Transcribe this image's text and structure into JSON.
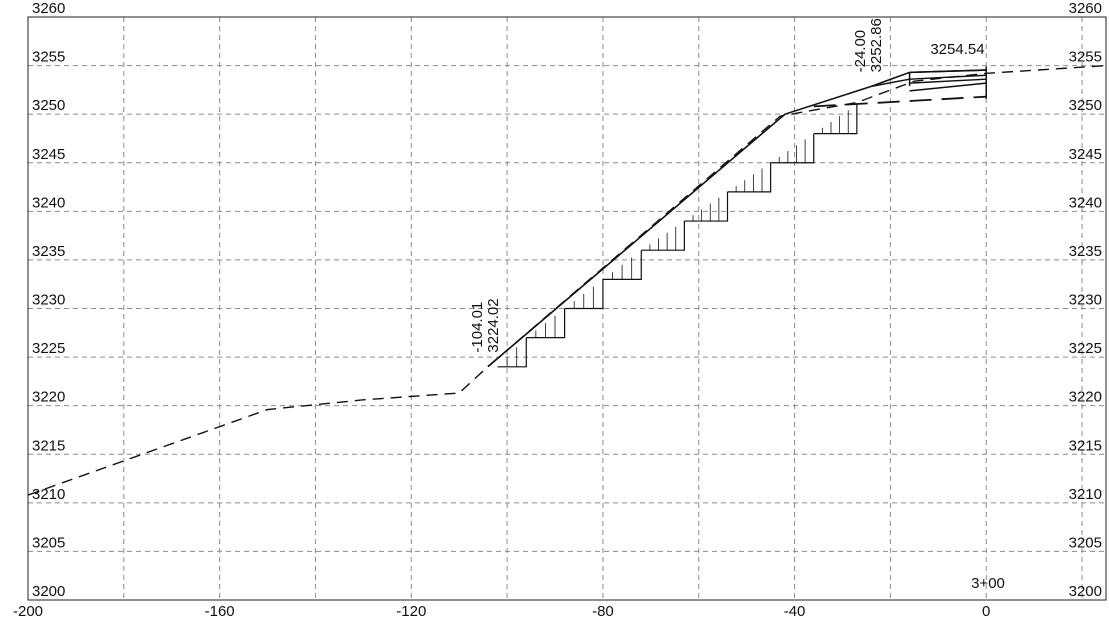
{
  "chart_data": {
    "type": "cross-section",
    "station_label": "3+00",
    "x_axis": {
      "range": [
        -200,
        25
      ],
      "tick_values": [
        -200,
        -160,
        -120,
        -80,
        -40,
        0
      ],
      "tick_labels": [
        "-200",
        "-160",
        "-120",
        "-80",
        "-40",
        "0"
      ],
      "grid_step": 20
    },
    "y_axis": {
      "range": [
        3200,
        3260
      ],
      "tick_values": [
        3200,
        3205,
        3210,
        3215,
        3220,
        3225,
        3230,
        3235,
        3240,
        3245,
        3250,
        3255,
        3260
      ],
      "tick_labels": [
        "3200",
        "3205",
        "3210",
        "3215",
        "3220",
        "3225",
        "3230",
        "3235",
        "3240",
        "3245",
        "3250",
        "3255",
        "3260"
      ]
    },
    "grid": true,
    "existing_ground": [
      {
        "x": -200,
        "y": 3210.8
      },
      {
        "x": -150,
        "y": 3219.6
      },
      {
        "x": -130,
        "y": 3220.6
      },
      {
        "x": -110,
        "y": 3221.3
      },
      {
        "x": -104.01,
        "y": 3224.02
      },
      {
        "x": -43,
        "y": 3249.8
      },
      {
        "x": -27,
        "y": 3251.2
      },
      {
        "x": -15,
        "y": 3253.4
      },
      {
        "x": 0,
        "y": 3254.2
      },
      {
        "x": 25,
        "y": 3255.0
      }
    ],
    "design_surface": [
      {
        "x": -104.01,
        "y": 3224.02
      },
      {
        "x": -42,
        "y": 3250.0
      },
      {
        "x": -24.0,
        "y": 3252.86
      },
      {
        "x": -16,
        "y": 3254.3
      },
      {
        "x": 0,
        "y": 3254.54
      }
    ],
    "road_top": [
      {
        "x": -16,
        "y": 3254.3
      },
      {
        "x": 0,
        "y": 3254.54
      }
    ],
    "road_layers": [
      {
        "from": {
          "x": -16,
          "y": 3253.2
        },
        "to": {
          "x": 0,
          "y": 3253.6
        }
      },
      {
        "from": {
          "x": -16,
          "y": 3253.6
        },
        "to": {
          "x": 0,
          "y": 3254.0
        }
      },
      {
        "from": {
          "x": -24.0,
          "y": 3252.86
        },
        "to": {
          "x": -16,
          "y": 3253.6
        }
      },
      {
        "from": {
          "x": -16,
          "y": 3252.4
        },
        "to": {
          "x": 0,
          "y": 3253.2
        }
      }
    ],
    "road_edge_x": 0,
    "subgrade": [
      {
        "x": -36,
        "y": 3250.8
      },
      {
        "x": 0,
        "y": 3251.8
      }
    ],
    "benches": [
      {
        "x1": -102,
        "x2": -96,
        "y_low": 3224.0,
        "y_high": 3227.0
      },
      {
        "x1": -96,
        "x2": -88,
        "y_low": 3227.0,
        "y_high": 3230.0
      },
      {
        "x1": -88,
        "x2": -80,
        "y_low": 3230.0,
        "y_high": 3233.0
      },
      {
        "x1": -80,
        "x2": -72,
        "y_low": 3233.0,
        "y_high": 3236.0
      },
      {
        "x1": -72,
        "x2": -63,
        "y_low": 3236.0,
        "y_high": 3239.0
      },
      {
        "x1": -63,
        "x2": -54,
        "y_low": 3239.0,
        "y_high": 3242.0
      },
      {
        "x1": -54,
        "x2": -45,
        "y_low": 3242.0,
        "y_high": 3245.0
      },
      {
        "x1": -45,
        "x2": -36,
        "y_low": 3245.0,
        "y_high": 3248.0
      },
      {
        "x1": -36,
        "x2": -27,
        "y_low": 3248.0,
        "y_high": 3251.0
      }
    ],
    "annotations": [
      {
        "text": "-104.01",
        "x": -104.01,
        "y": 3224.02,
        "rotated": true,
        "order": 0
      },
      {
        "text": "3224.02",
        "x": -104.01,
        "y": 3224.02,
        "rotated": true,
        "order": 1
      },
      {
        "text": "-24.00",
        "x": -24.0,
        "y": 3252.86,
        "rotated": true,
        "order": 0
      },
      {
        "text": "3252.86",
        "x": -24.0,
        "y": 3252.86,
        "rotated": true,
        "order": 1
      },
      {
        "text": "3254.54",
        "x": -6,
        "y": 3256.2,
        "rotated": false,
        "order": 0
      }
    ]
  }
}
